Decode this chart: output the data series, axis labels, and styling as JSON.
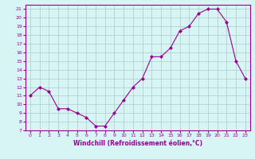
{
  "hours": [
    0,
    1,
    2,
    3,
    4,
    5,
    6,
    7,
    8,
    9,
    10,
    11,
    12,
    13,
    14,
    15,
    16,
    17,
    18,
    19,
    20,
    21,
    22,
    23
  ],
  "values": [
    11,
    12,
    11.5,
    9.5,
    9.5,
    9.0,
    8.5,
    7.5,
    7.5,
    9.0,
    10.5,
    12,
    13,
    15.5,
    15.5,
    16.5,
    18.5,
    19.0,
    20.5,
    21,
    21,
    19.5,
    15,
    13
  ],
  "ylim": [
    7,
    21.5
  ],
  "yticks": [
    7,
    8,
    9,
    10,
    11,
    12,
    13,
    14,
    15,
    16,
    17,
    18,
    19,
    20,
    21
  ],
  "line_color": "#990099",
  "marker": "D",
  "marker_size": 2,
  "bg_color": "#d8f5f5",
  "grid_color": "#b0c8c8",
  "xlabel": "Windchill (Refroidissement éolien,°C)",
  "tick_fontsize": 4.5,
  "xlabel_fontsize": 5.5
}
